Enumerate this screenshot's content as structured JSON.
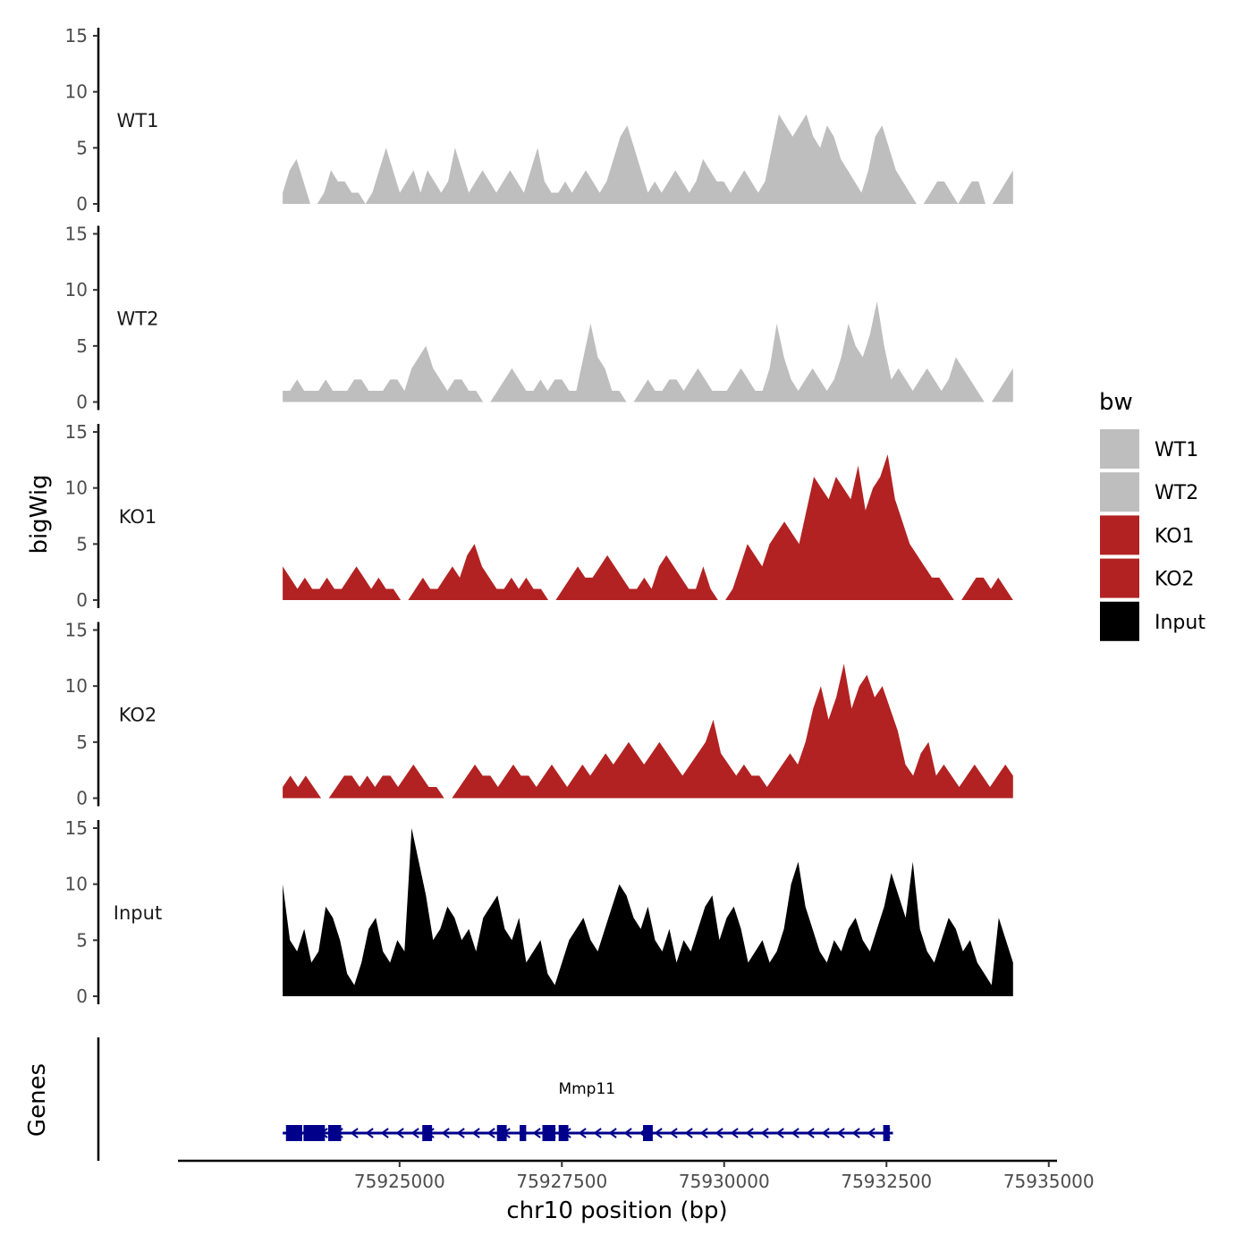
{
  "chart_data": {
    "type": "area",
    "title": "",
    "ylabel": "bigWig",
    "xlabel": "chr10 position (bp)",
    "genes_label": "Genes",
    "x_range": [
      75921600,
      75935100
    ],
    "data_x_range": [
      75923200,
      75934450
    ],
    "x_ticks": [
      75925000,
      75927500,
      75930000,
      75932500,
      75935000
    ],
    "x_tick_labels": [
      "75925000",
      "75927500",
      "75930000",
      "75932500",
      "75935000"
    ],
    "y_range": [
      0,
      15
    ],
    "y_ticks": [
      0,
      5,
      10,
      15
    ],
    "y_tick_labels": [
      "0",
      "5",
      "10",
      "15"
    ],
    "legend": {
      "title": "bw",
      "entries": [
        {
          "label": "WT1",
          "color": "#bebebe"
        },
        {
          "label": "WT2",
          "color": "#bebebe"
        },
        {
          "label": "KO1",
          "color": "#b22222"
        },
        {
          "label": "KO2",
          "color": "#b22222"
        },
        {
          "label": "Input",
          "color": "#000000"
        }
      ]
    },
    "tracks": [
      {
        "name": "WT1",
        "color": "#bebebe",
        "values": [
          1,
          3,
          4,
          2,
          0,
          0,
          1,
          3,
          2,
          2,
          1,
          1,
          0,
          1,
          3,
          5,
          3,
          1,
          2,
          3,
          1,
          3,
          2,
          1,
          2,
          5,
          3,
          1,
          2,
          3,
          2,
          1,
          2,
          3,
          2,
          1,
          3,
          5,
          2,
          1,
          1,
          2,
          1,
          2,
          3,
          2,
          1,
          2,
          4,
          6,
          7,
          5,
          3,
          1,
          2,
          1,
          2,
          3,
          2,
          1,
          2,
          4,
          3,
          2,
          2,
          1,
          2,
          3,
          2,
          1,
          2,
          5,
          8,
          7,
          6,
          7,
          8,
          6,
          5,
          7,
          6,
          4,
          3,
          2,
          1,
          3,
          6,
          7,
          5,
          3,
          2,
          1,
          0,
          0,
          1,
          2,
          2,
          1,
          0,
          1,
          2,
          2,
          0,
          0,
          1,
          2,
          3
        ]
      },
      {
        "name": "WT2",
        "color": "#bebebe",
        "values": [
          1,
          1,
          2,
          1,
          1,
          1,
          2,
          1,
          1,
          1,
          2,
          2,
          1,
          1,
          1,
          2,
          2,
          1,
          3,
          4,
          5,
          3,
          2,
          1,
          2,
          2,
          1,
          1,
          0,
          0,
          1,
          2,
          3,
          2,
          1,
          1,
          2,
          1,
          2,
          2,
          1,
          1,
          4,
          7,
          4,
          3,
          1,
          1,
          0,
          0,
          1,
          2,
          1,
          1,
          2,
          2,
          1,
          2,
          3,
          2,
          1,
          1,
          1,
          2,
          3,
          2,
          1,
          1,
          3,
          7,
          4,
          2,
          1,
          2,
          3,
          2,
          1,
          2,
          4,
          7,
          5,
          4,
          6,
          9,
          5,
          2,
          3,
          2,
          1,
          2,
          3,
          2,
          1,
          2,
          4,
          3,
          2,
          1,
          0,
          0,
          1,
          2,
          3
        ]
      },
      {
        "name": "KO1",
        "color": "#b22222",
        "values": [
          3,
          2,
          1,
          2,
          1,
          1,
          2,
          1,
          1,
          2,
          3,
          2,
          1,
          2,
          1,
          1,
          0,
          0,
          1,
          2,
          1,
          1,
          2,
          3,
          2,
          4,
          5,
          3,
          2,
          1,
          1,
          2,
          1,
          2,
          1,
          1,
          0,
          0,
          1,
          2,
          3,
          2,
          2,
          3,
          4,
          3,
          2,
          1,
          1,
          2,
          1,
          3,
          4,
          3,
          2,
          1,
          1,
          3,
          1,
          0,
          0,
          1,
          3,
          5,
          4,
          3,
          5,
          6,
          7,
          6,
          5,
          8,
          11,
          10,
          9,
          11,
          10,
          9,
          12,
          8,
          10,
          11,
          13,
          9,
          7,
          5,
          4,
          3,
          2,
          2,
          1,
          0,
          0,
          1,
          2,
          2,
          1,
          2,
          1,
          0
        ]
      },
      {
        "name": "KO2",
        "color": "#b22222",
        "values": [
          1,
          2,
          1,
          2,
          1,
          0,
          0,
          1,
          2,
          2,
          1,
          2,
          1,
          2,
          2,
          1,
          2,
          3,
          2,
          1,
          1,
          0,
          0,
          1,
          2,
          3,
          2,
          2,
          1,
          2,
          3,
          2,
          2,
          1,
          2,
          3,
          2,
          1,
          2,
          3,
          2,
          3,
          4,
          3,
          4,
          5,
          4,
          3,
          4,
          5,
          4,
          3,
          2,
          3,
          4,
          5,
          7,
          4,
          3,
          2,
          3,
          2,
          2,
          1,
          2,
          3,
          4,
          3,
          5,
          8,
          10,
          7,
          9,
          12,
          8,
          10,
          11,
          9,
          10,
          8,
          6,
          3,
          2,
          4,
          5,
          2,
          3,
          2,
          1,
          2,
          3,
          2,
          1,
          2,
          3,
          2
        ]
      },
      {
        "name": "Input",
        "color": "#000000",
        "values": [
          10,
          5,
          4,
          6,
          3,
          4,
          8,
          7,
          5,
          2,
          1,
          3,
          6,
          7,
          4,
          3,
          5,
          4,
          15,
          12,
          9,
          5,
          6,
          8,
          7,
          5,
          6,
          4,
          7,
          8,
          9,
          6,
          5,
          7,
          3,
          4,
          5,
          2,
          1,
          3,
          5,
          6,
          7,
          5,
          4,
          6,
          8,
          10,
          9,
          7,
          6,
          8,
          5,
          4,
          6,
          3,
          5,
          4,
          6,
          8,
          9,
          5,
          7,
          8,
          6,
          3,
          4,
          5,
          3,
          4,
          6,
          10,
          12,
          8,
          6,
          4,
          3,
          5,
          4,
          6,
          7,
          5,
          4,
          6,
          8,
          11,
          9,
          7,
          12,
          6,
          4,
          3,
          5,
          7,
          6,
          4,
          5,
          3,
          2,
          1,
          7,
          5,
          3
        ]
      }
    ],
    "gene": {
      "name": "Mmp11",
      "start": 75923200,
      "end": 75932600,
      "strand": "-",
      "exons": [
        [
          75923250,
          75923500
        ],
        [
          75923520,
          75923850
        ],
        [
          75923900,
          75924100
        ],
        [
          75925350,
          75925500
        ],
        [
          75926500,
          75926650
        ],
        [
          75926850,
          75926950
        ],
        [
          75927200,
          75927400
        ],
        [
          75927450,
          75927600
        ],
        [
          75928750,
          75928900
        ],
        [
          75932450,
          75932550
        ]
      ]
    }
  }
}
